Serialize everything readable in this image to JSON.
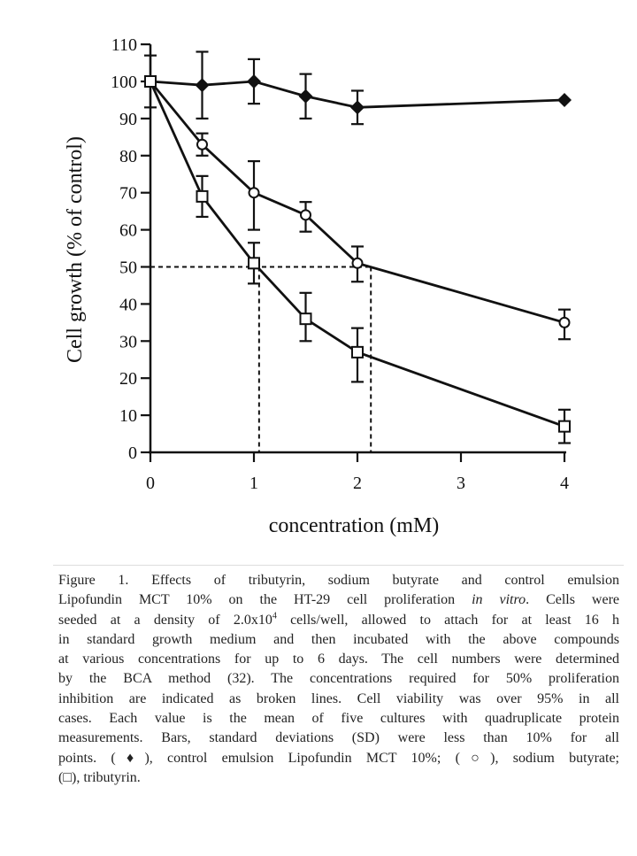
{
  "chart_data": {
    "type": "line",
    "xlabel": "concentration (mM)",
    "ylabel": "Cell growth (% of control)",
    "xlim": [
      0,
      4
    ],
    "ylim": [
      0,
      110
    ],
    "xticks": [
      "0",
      "1",
      "2",
      "3",
      "4"
    ],
    "yticks": [
      "0",
      "10",
      "20",
      "30",
      "40",
      "50",
      "60",
      "70",
      "80",
      "90",
      "100",
      "110"
    ],
    "grid": false,
    "series": [
      {
        "marker": "filled-diamond",
        "x": [
          0,
          0.5,
          1,
          1.5,
          2,
          4
        ],
        "y": [
          100,
          99,
          100,
          96,
          93,
          95
        ],
        "err_high": [
          107,
          108,
          106,
          102,
          97.5,
          null
        ],
        "err_low": [
          93,
          90,
          94,
          90,
          88.5,
          null
        ]
      },
      {
        "marker": "open-circle",
        "x": [
          0,
          0.5,
          1,
          1.5,
          2,
          4
        ],
        "y": [
          100,
          83,
          70,
          64,
          51,
          35
        ],
        "err_high": [
          null,
          86,
          78.5,
          67.5,
          55.5,
          38.5
        ],
        "err_low": [
          null,
          80,
          60,
          59.5,
          46,
          30.5
        ]
      },
      {
        "marker": "open-square",
        "x": [
          0,
          0.5,
          1,
          1.5,
          2,
          4
        ],
        "y": [
          100,
          69,
          51,
          36,
          27,
          7
        ],
        "err_high": [
          null,
          74.5,
          56.5,
          43,
          33.5,
          11.5
        ],
        "err_low": [
          null,
          63.5,
          45.5,
          30,
          19,
          2.5
        ]
      }
    ],
    "reference_lines": {
      "y": 50,
      "x": [
        1.05,
        2.13
      ],
      "style": "dashed"
    }
  },
  "caption": {
    "lines": [
      [
        {
          "t": "Figure 1. Effects of tributyrin, sodium butyrate and control emulsion"
        }
      ],
      [
        {
          "t": "Lipofundin MCT 10% on the HT-29 cell proliferation "
        },
        {
          "t": "in vitro",
          "i": true
        },
        {
          "t": ". Cells were"
        }
      ],
      [
        {
          "t": "seeded at a density of 2.0x10"
        },
        {
          "t": "4",
          "sup": true
        },
        {
          "t": " cells/well, allowed to attach for at least 16 h"
        }
      ],
      [
        {
          "t": "in standard growth medium and then incubated with the above compounds"
        }
      ],
      [
        {
          "t": "at various concentrations for up to 6 days. The cell numbers were determined"
        }
      ],
      [
        {
          "t": "by the BCA method (32). The concentrations required for 50% proliferation"
        }
      ],
      [
        {
          "t": "inhibition are indicated as broken lines. Cell viability was over 95% in all"
        }
      ],
      [
        {
          "t": "cases. Each value is the mean of five cultures with quadruplicate protein"
        }
      ],
      [
        {
          "t": "measurements. Bars, standard deviations (SD) were less than 10% for all"
        }
      ],
      [
        {
          "t": "points. (♦), control emulsion Lipofundin MCT 10%; (○), sodium butyrate;"
        }
      ],
      [
        {
          "t": "(□), tributyrin."
        }
      ]
    ]
  }
}
